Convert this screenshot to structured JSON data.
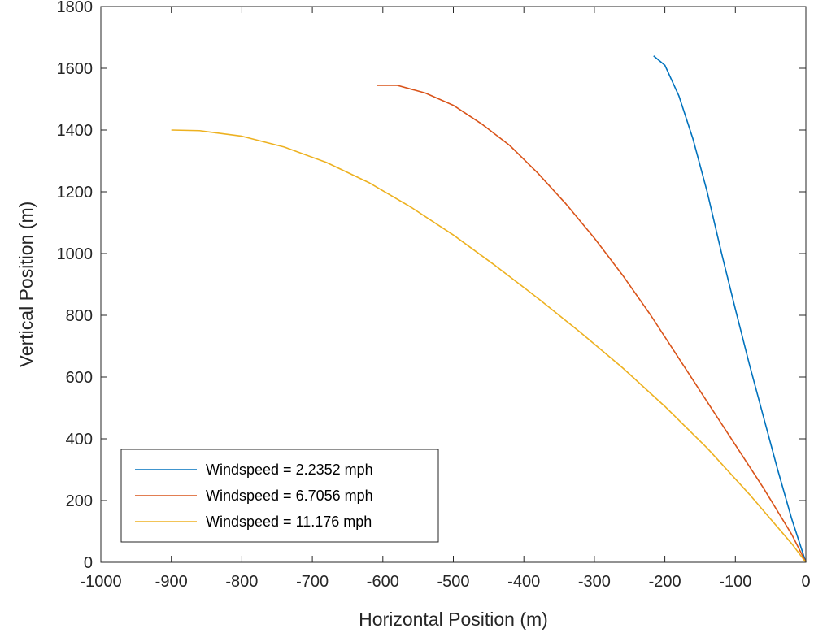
{
  "chart_data": {
    "type": "line",
    "title": "",
    "xlabel": "Horizontal Position (m)",
    "ylabel": "Vertical Position (m)",
    "xlim": [
      -1000,
      0
    ],
    "ylim": [
      0,
      1800
    ],
    "xticks": [
      -1000,
      -900,
      -800,
      -700,
      -600,
      -500,
      -400,
      -300,
      -200,
      -100,
      0
    ],
    "yticks": [
      0,
      200,
      400,
      600,
      800,
      1000,
      1200,
      1400,
      1600,
      1800
    ],
    "grid": false,
    "legend_position": "bottom-left",
    "series": [
      {
        "name": "Windspeed = 2.2352 mph",
        "color": "#0072BD",
        "x": [
          -216,
          -200,
          -180,
          -160,
          -140,
          -120,
          -100,
          -80,
          -60,
          -40,
          -20,
          0
        ],
        "y": [
          1640,
          1610,
          1510,
          1370,
          1200,
          1005,
          820,
          640,
          470,
          300,
          140,
          0
        ]
      },
      {
        "name": "Windspeed = 6.7056 mph",
        "color": "#D95319",
        "x": [
          -608,
          -580,
          -540,
          -500,
          -460,
          -420,
          -380,
          -340,
          -300,
          -260,
          -220,
          -180,
          -140,
          -100,
          -60,
          -20,
          0
        ],
        "y": [
          1545,
          1545,
          1520,
          1480,
          1420,
          1350,
          1260,
          1160,
          1050,
          930,
          800,
          660,
          520,
          380,
          240,
          90,
          0
        ]
      },
      {
        "name": "Windspeed = 11.176 mph",
        "color": "#EDB120",
        "x": [
          -900,
          -860,
          -800,
          -740,
          -680,
          -620,
          -560,
          -500,
          -440,
          -380,
          -320,
          -260,
          -200,
          -140,
          -80,
          -20,
          0
        ],
        "y": [
          1400,
          1398,
          1380,
          1345,
          1295,
          1230,
          1150,
          1060,
          960,
          855,
          745,
          630,
          505,
          370,
          220,
          60,
          0
        ]
      }
    ]
  }
}
